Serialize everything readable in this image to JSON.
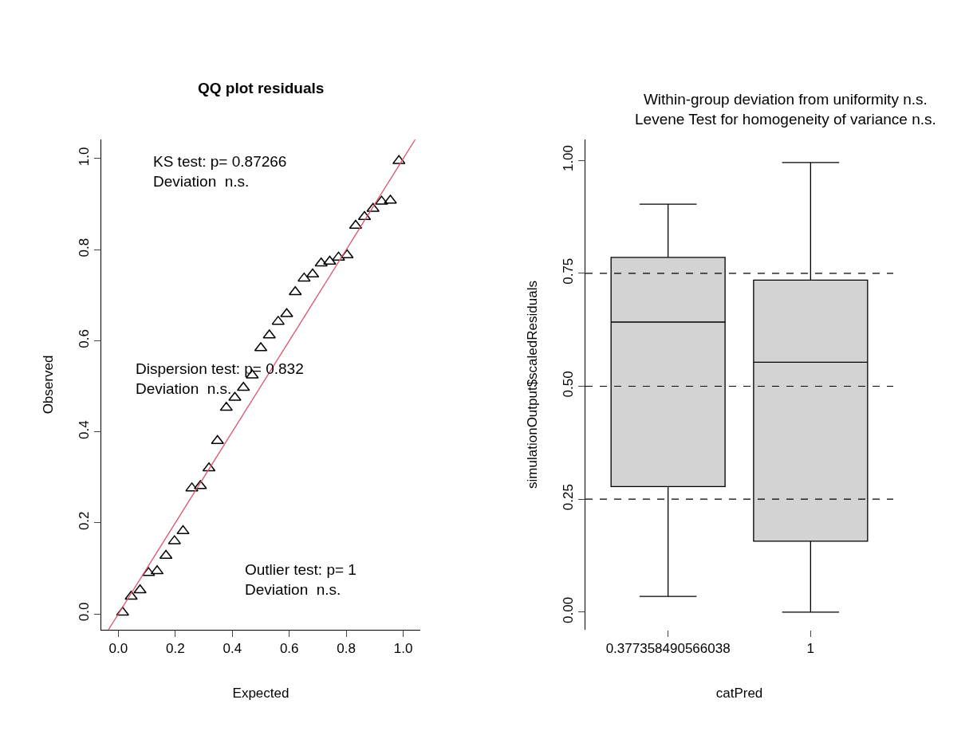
{
  "chart_data": [
    {
      "type": "scatter",
      "title": "QQ plot residuals",
      "xlabel": "Expected",
      "ylabel": "Observed",
      "xlim": [
        -0.06,
        1.06
      ],
      "ylim": [
        -0.035,
        1.042
      ],
      "xticks": [
        {
          "value": 0,
          "label": "0.0"
        },
        0.2,
        0.4,
        0.6,
        0.8,
        {
          "value": 1,
          "label": "1.0"
        }
      ],
      "yticks": [
        {
          "value": 0,
          "label": "0.0"
        },
        0.2,
        0.4,
        0.6,
        0.8,
        {
          "value": 1,
          "label": "1.0"
        }
      ],
      "annotations": [
        "KS test: p= 0.87266\nDeviation  n.s.",
        "Dispersion test: p= 0.832\nDeviation  n.s.",
        "Outlier test: p= 1\nDeviation  n.s."
      ],
      "series": [
        {
          "type": "scatter",
          "marker": "triangle",
          "color": "#000000",
          "x": [
            0.015,
            0.045,
            0.076,
            0.106,
            0.136,
            0.167,
            0.197,
            0.227,
            0.258,
            0.288,
            0.318,
            0.348,
            0.379,
            0.409,
            0.439,
            0.47,
            0.5,
            0.53,
            0.561,
            0.591,
            0.621,
            0.652,
            0.682,
            0.712,
            0.742,
            0.773,
            0.803,
            0.833,
            0.864,
            0.894,
            0.924,
            0.955,
            0.985
          ],
          "values": [
            0.003,
            0.038,
            0.052,
            0.09,
            0.094,
            0.128,
            0.16,
            0.182,
            0.276,
            0.281,
            0.32,
            0.38,
            0.453,
            0.475,
            0.497,
            0.524,
            0.584,
            0.612,
            0.642,
            0.659,
            0.707,
            0.737,
            0.746,
            0.77,
            0.774,
            0.783,
            0.788,
            0.853,
            0.872,
            0.89,
            0.906,
            0.908,
            0.995
          ]
        },
        {
          "type": "line",
          "marker": "none",
          "line_style": "solid",
          "color": "#df536b",
          "x": [
            -0.035,
            1.042
          ],
          "values": [
            -0.035,
            1.042
          ]
        }
      ]
    },
    {
      "type": "box",
      "title": "Within-group deviation from uniformity n.s.\nLevene Test for homogeneity of variance n.s.",
      "xlabel": "catPred",
      "ylabel": "simulationOutput$scaledResiduals",
      "categories": [
        "0.377358490566038",
        "1"
      ],
      "color": "#d3d3d3",
      "ylim": [
        -0.039,
        1.046
      ],
      "yticks": [
        {
          "value": 0,
          "label": "0.00"
        },
        0.25,
        {
          "value": 0.5,
          "label": "0.50"
        },
        0.75,
        {
          "value": 1,
          "label": "1.00"
        }
      ],
      "boxes": [
        {
          "low": 0.035,
          "q1": 0.278,
          "median": 0.642,
          "q3": 0.785,
          "high": 0.903
        },
        {
          "low": 0.0,
          "q1": 0.157,
          "median": 0.553,
          "q3": 0.735,
          "high": 0.995
        }
      ],
      "ref_lines": [
        {
          "axis": "y",
          "value": 0.25,
          "color": "#000000",
          "line_style": "dashed"
        },
        {
          "axis": "y",
          "value": 0.5,
          "color": "#000000",
          "line_style": "dashed"
        },
        {
          "axis": "y",
          "value": 0.75,
          "color": "#000000",
          "line_style": "dashed"
        }
      ]
    }
  ]
}
